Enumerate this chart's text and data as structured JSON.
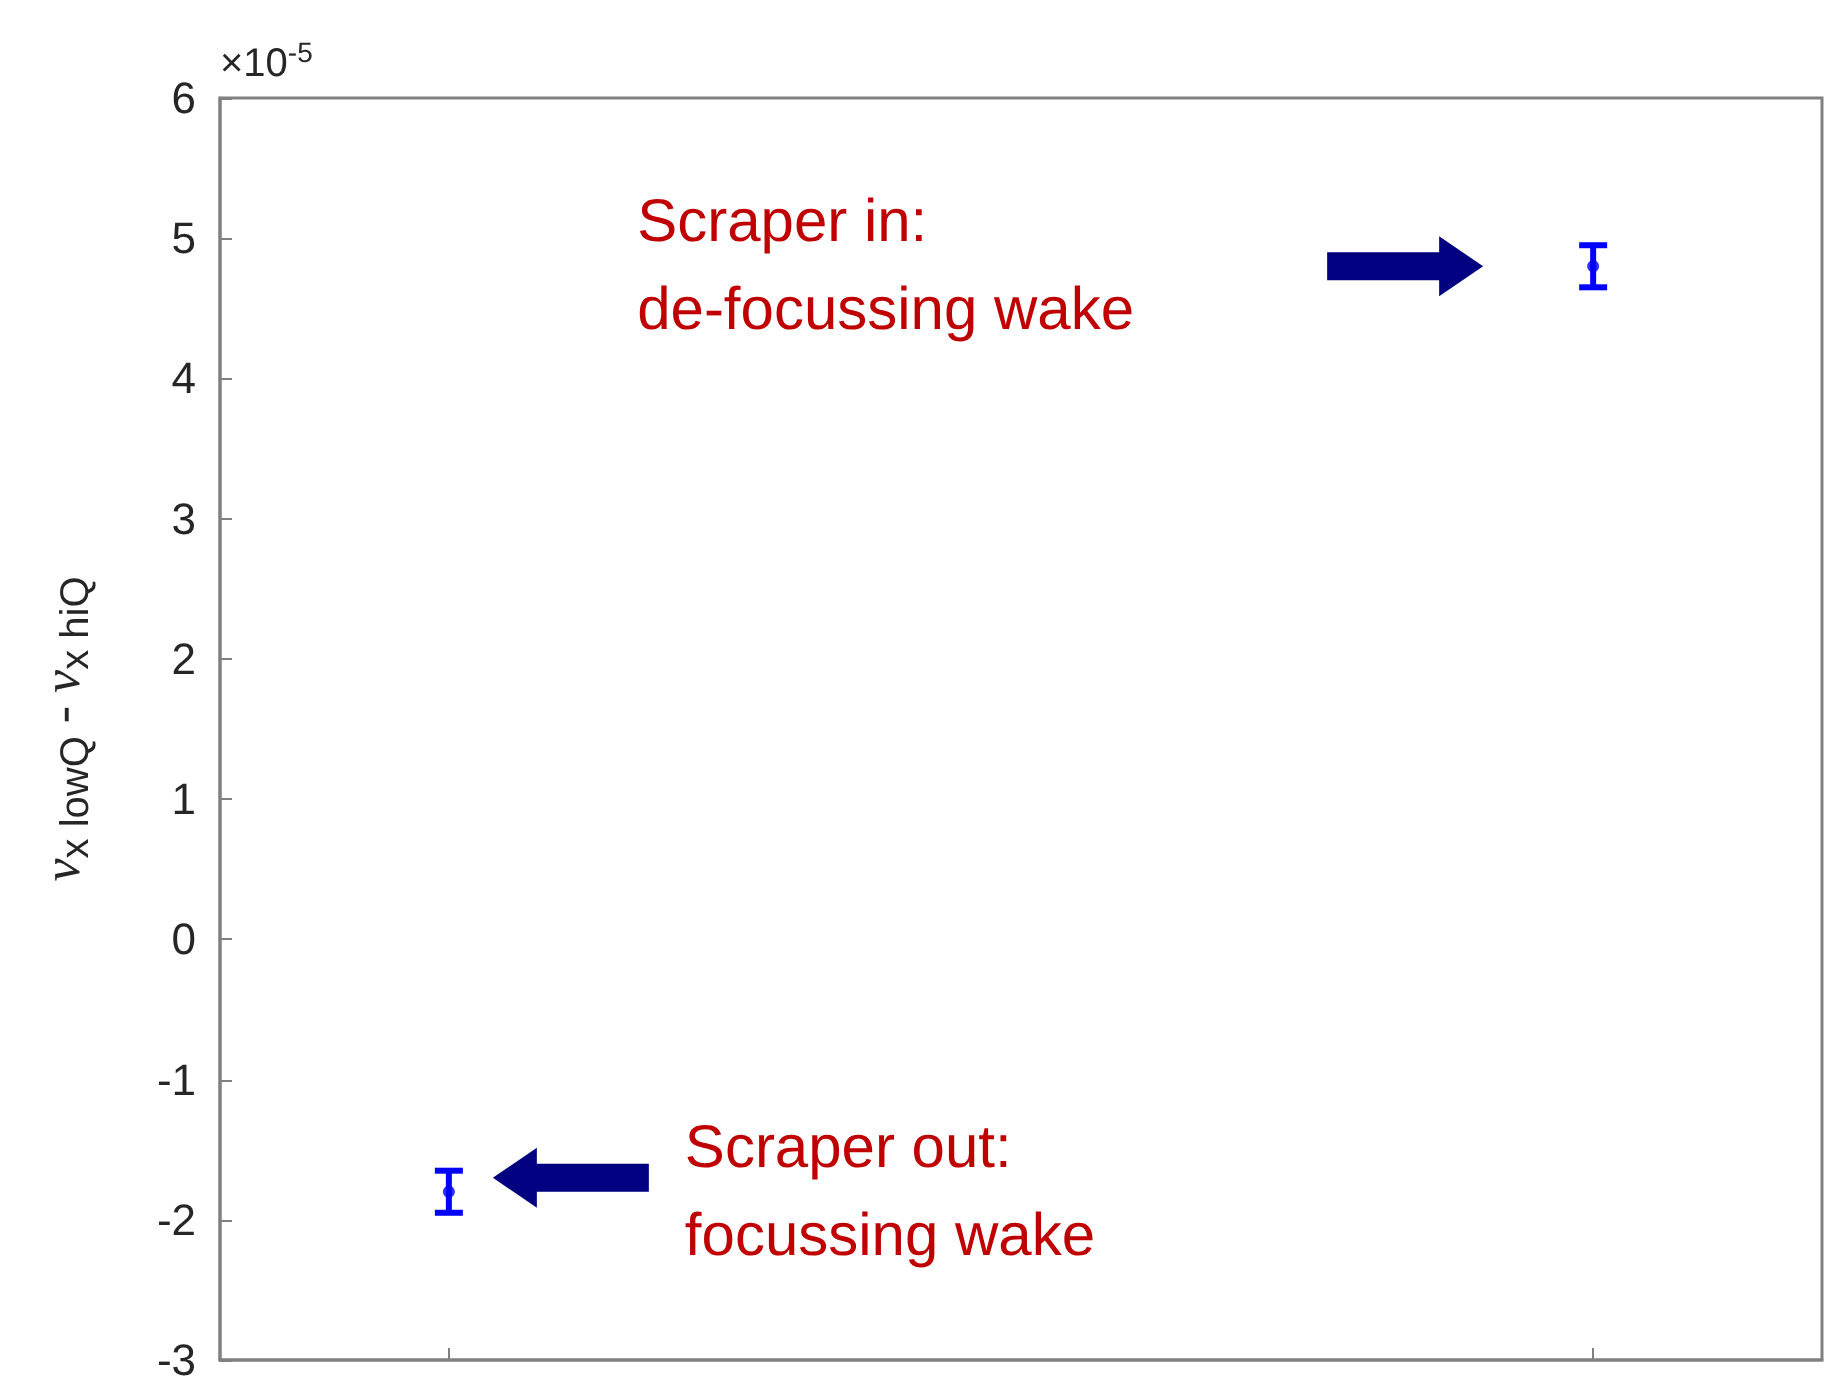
{
  "chart_data": {
    "type": "scatter",
    "ylabel": "ν$_{x lowQ}$ - ν$_{x hiQ}$",
    "categories": [
      null,
      null
    ],
    "series": [
      {
        "color": "#0000ff",
        "values": [
          -1.8,
          4.8
        ],
        "errors": [
          0.15,
          0.15
        ]
      }
    ],
    "ylim": [
      -3,
      6
    ],
    "yticks": [
      -3,
      -2,
      -1,
      0,
      1,
      2,
      3,
      4,
      5,
      6
    ],
    "tick_labels": "y",
    "marker": "circle",
    "annotations": [
      "×10$^{-5}$",
      "Scraper out:\nfocussing wake",
      "Scraper in:\nde-focussing wake"
    ]
  }
}
